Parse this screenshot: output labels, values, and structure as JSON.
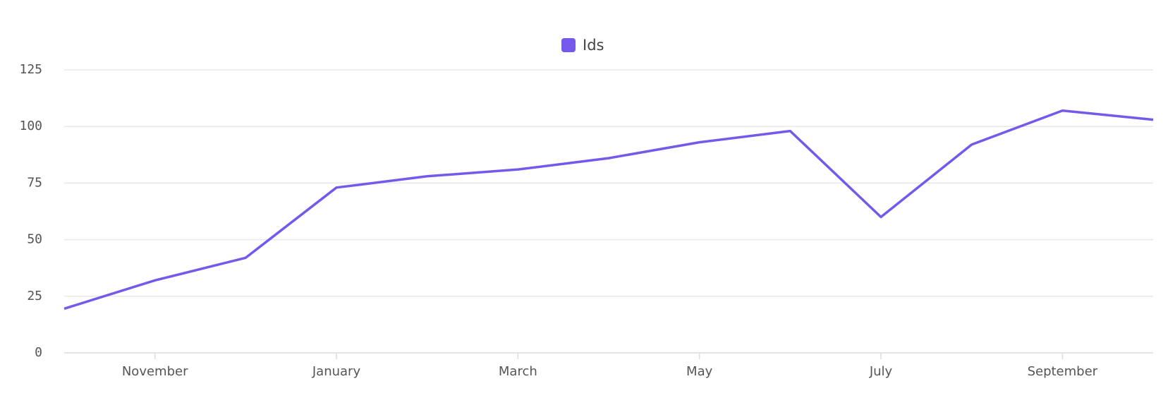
{
  "chart_data": {
    "type": "line",
    "categories": [
      null,
      "November",
      null,
      "January",
      null,
      "March",
      null,
      "May",
      null,
      "July",
      null,
      "September",
      null
    ],
    "series": [
      {
        "name": "Ids",
        "color": "#7459eb",
        "values": [
          19.5,
          32,
          42,
          73,
          78,
          81,
          86,
          93,
          98,
          60,
          92,
          107,
          103
        ]
      }
    ],
    "ylim": [
      0,
      125
    ],
    "yticks": [
      0,
      25,
      50,
      75,
      100,
      125
    ],
    "grid": true,
    "legend": "top"
  }
}
